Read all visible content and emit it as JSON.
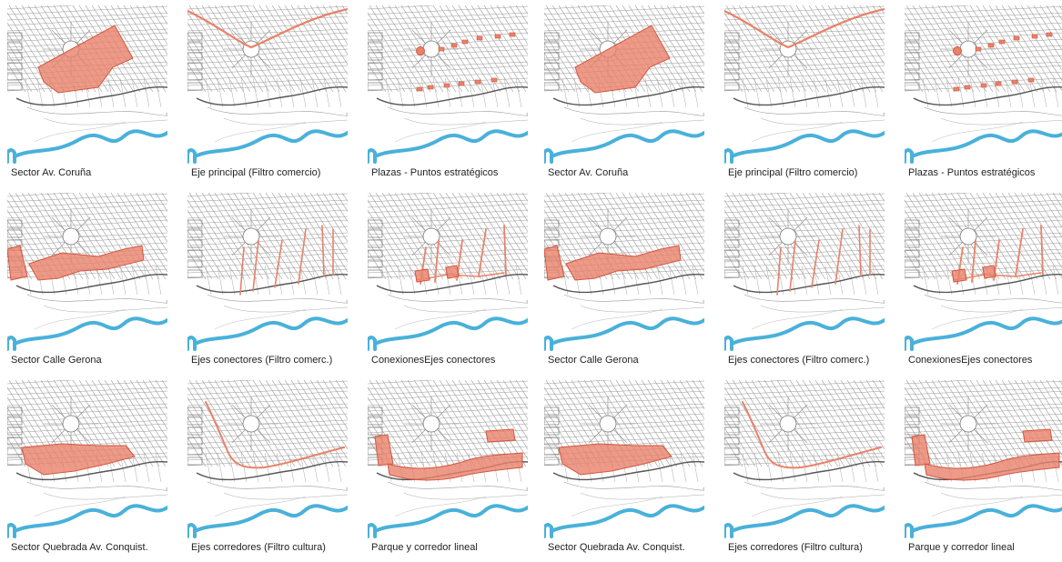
{
  "colors": {
    "highlight": "#e9826a",
    "highlight_stroke": "#d4563f",
    "river": "#49b1da",
    "streets": "#9a9a9a",
    "background": "#ffffff"
  },
  "panels": [
    {
      "caption": "Sector Av. Coruña",
      "highlight": "sector-coruna"
    },
    {
      "caption": "Eje principal (Filtro comercio)",
      "highlight": "eje-principal"
    },
    {
      "caption": "Plazas - Puntos estratégicos",
      "highlight": "plazas"
    },
    {
      "caption": "Sector Av. Coruña",
      "highlight": "sector-coruna"
    },
    {
      "caption": "Eje principal (Filtro comercio)",
      "highlight": "eje-principal"
    },
    {
      "caption": "Plazas - Puntos estratégicos",
      "highlight": "plazas"
    },
    {
      "caption": "Sector Calle Gerona",
      "highlight": "sector-gerona"
    },
    {
      "caption": "Ejes conectores (Filtro comerc.)",
      "highlight": "ejes-conectores"
    },
    {
      "caption": "ConexionesEjes conectores",
      "highlight": "conexiones"
    },
    {
      "caption": "Sector Calle Gerona",
      "highlight": "sector-gerona"
    },
    {
      "caption": "Ejes conectores (Filtro comerc.)",
      "highlight": "ejes-conectores"
    },
    {
      "caption": "ConexionesEjes conectores",
      "highlight": "conexiones"
    },
    {
      "caption": "Sector Quebrada Av. Conquist.",
      "highlight": "sector-quebrada"
    },
    {
      "caption": "Ejes corredores (Filtro cultura)",
      "highlight": "ejes-corredores"
    },
    {
      "caption": "Parque y corredor lineal",
      "highlight": "parque-corredor"
    },
    {
      "caption": "Sector Quebrada Av. Conquist.",
      "highlight": "sector-quebrada"
    },
    {
      "caption": "Ejes corredores (Filtro cultura)",
      "highlight": "ejes-corredores"
    },
    {
      "caption": "Parque y corredor lineal",
      "highlight": "parque-corredor"
    }
  ]
}
